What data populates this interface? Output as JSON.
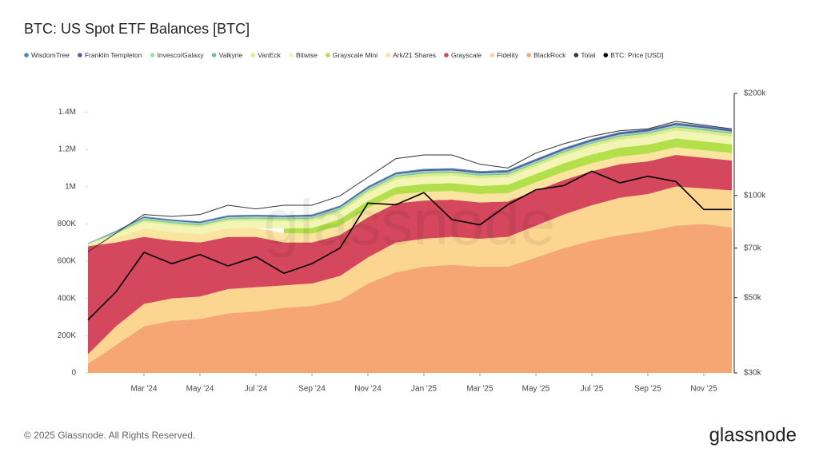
{
  "chart_data": {
    "type": "area",
    "stacked": true,
    "title": "BTC: US Spot ETF Balances [BTC]",
    "watermark": "glassnode",
    "footer": "© 2025 Glassnode. All Rights Reserved.",
    "logo": "glassnode",
    "x": [
      "2024-01",
      "2024-02",
      "2024-03",
      "2024-04",
      "2024-05",
      "2024-06",
      "2024-07",
      "2024-08",
      "2024-09",
      "2024-10",
      "2024-11",
      "2024-12",
      "2025-01",
      "2025-02",
      "2025-03",
      "2025-04",
      "2025-05",
      "2025-06",
      "2025-07",
      "2025-08",
      "2025-09",
      "2025-10",
      "2025-11",
      "2025-12"
    ],
    "xlim": [
      "2024-01",
      "2025-12"
    ],
    "xticks": [
      {
        "value": "2024-03",
        "label": "Mar '24"
      },
      {
        "value": "2024-05",
        "label": "May '24"
      },
      {
        "value": "2024-07",
        "label": "Jul '24"
      },
      {
        "value": "2024-09",
        "label": "Sep '24"
      },
      {
        "value": "2024-11",
        "label": "Nov '24"
      },
      {
        "value": "2025-01",
        "label": "Jan '25"
      },
      {
        "value": "2025-03",
        "label": "Mar '25"
      },
      {
        "value": "2025-05",
        "label": "May '25"
      },
      {
        "value": "2025-07",
        "label": "Jul '25"
      },
      {
        "value": "2025-09",
        "label": "Sep '25"
      },
      {
        "value": "2025-11",
        "label": "Nov '25"
      }
    ],
    "ylim": [
      0,
      1500000
    ],
    "yticks": [
      0,
      {
        "value": 200000,
        "label": "200K"
      },
      {
        "value": 400000,
        "label": "400K"
      },
      {
        "value": 600000,
        "label": "600K"
      },
      {
        "value": 800000,
        "label": "800K"
      },
      {
        "value": 1000000,
        "label": "1M"
      },
      {
        "value": 1200000,
        "label": "1.2M"
      },
      {
        "value": 1400000,
        "label": "1.4M"
      }
    ],
    "y2scale": "log",
    "y2lim": [
      30000,
      200000
    ],
    "y2ticks": [
      {
        "value": 30000,
        "label": "$30k"
      },
      {
        "value": 50000,
        "label": "$50k"
      },
      {
        "value": 70000,
        "label": "$70k"
      },
      {
        "value": 100000,
        "label": "$100k"
      },
      {
        "value": 200000,
        "label": "$200k"
      }
    ],
    "series": [
      {
        "name": "WisdomTree",
        "color": "#3a8cc4",
        "values": [
          1000,
          2000,
          3000,
          3000,
          3000,
          3000,
          3000,
          3000,
          3000,
          3000,
          3000,
          3000,
          3000,
          3000,
          3000,
          3000,
          3000,
          3000,
          3000,
          3000,
          3000,
          3000,
          3000,
          3000
        ]
      },
      {
        "name": "Franklin Templeton",
        "color": "#5a5a9e",
        "values": [
          1000,
          3000,
          5000,
          5000,
          6000,
          6000,
          6000,
          6000,
          7000,
          7000,
          8000,
          8000,
          9000,
          9000,
          9000,
          9000,
          10000,
          10000,
          10000,
          10000,
          10000,
          10000,
          10000,
          10000
        ]
      },
      {
        "name": "Invesco/Galaxy",
        "color": "#a3d9b1",
        "values": [
          3000,
          5000,
          7000,
          7000,
          7000,
          7000,
          7000,
          7000,
          7000,
          7000,
          7000,
          7000,
          7000,
          6000,
          6000,
          6000,
          6000,
          6000,
          6000,
          6000,
          6000,
          6000,
          6000,
          6000
        ]
      },
      {
        "name": "Valkyrie",
        "color": "#6cc5a0",
        "values": [
          1000,
          3000,
          5000,
          5000,
          5000,
          5000,
          5000,
          5000,
          5000,
          5000,
          6000,
          6000,
          6000,
          6000,
          6000,
          6000,
          6000,
          6000,
          6000,
          6000,
          6000,
          6000,
          6000,
          6000
        ]
      },
      {
        "name": "VanEck",
        "color": "#d9ec8c",
        "values": [
          1000,
          5000,
          10000,
          10000,
          10000,
          10000,
          12000,
          12000,
          12000,
          13000,
          15000,
          15000,
          16000,
          16000,
          15000,
          15000,
          16000,
          16000,
          16000,
          17000,
          17000,
          17000,
          17000,
          16000
        ]
      },
      {
        "name": "Bitwise",
        "color": "#f2f5b3",
        "values": [
          5000,
          20000,
          35000,
          37000,
          37000,
          38000,
          38000,
          38000,
          38000,
          38000,
          40000,
          40000,
          40000,
          40000,
          40000,
          40000,
          40000,
          42000,
          42000,
          42000,
          42000,
          42000,
          42000,
          40000
        ]
      },
      {
        "name": "Grayscale Mini",
        "color": "#b3e04a",
        "values": [
          null,
          null,
          null,
          null,
          null,
          null,
          null,
          25000,
          30000,
          35000,
          38000,
          40000,
          42000,
          43000,
          44000,
          45000,
          45000,
          46000,
          47000,
          47000,
          48000,
          48000,
          48000,
          47000
        ]
      },
      {
        "name": "Ark/21 Shares",
        "color": "#fbe3a0",
        "values": [
          5000,
          25000,
          45000,
          47000,
          45000,
          47000,
          48000,
          50000,
          48000,
          50000,
          50000,
          48000,
          47000,
          46000,
          45000,
          45000,
          45000,
          44000,
          43000,
          42000,
          42000,
          41000,
          40000,
          40000
        ]
      },
      {
        "name": "Grayscale",
        "color": "#d4475c",
        "values": [
          580000,
          450000,
          360000,
          310000,
          290000,
          280000,
          270000,
          230000,
          220000,
          220000,
          215000,
          210000,
          205000,
          200000,
          195000,
          190000,
          188000,
          185000,
          183000,
          180000,
          175000,
          170000,
          165000,
          160000
        ]
      },
      {
        "name": "Fidelity",
        "color": "#fcd591",
        "values": [
          50000,
          100000,
          120000,
          120000,
          120000,
          130000,
          130000,
          120000,
          120000,
          130000,
          140000,
          160000,
          150000,
          150000,
          150000,
          160000,
          170000,
          180000,
          190000,
          200000,
          200000,
          210000,
          190000,
          200000
        ]
      },
      {
        "name": "BlackRock",
        "color": "#f5a672",
        "values": [
          50000,
          150000,
          250000,
          280000,
          290000,
          320000,
          330000,
          350000,
          360000,
          390000,
          480000,
          540000,
          570000,
          580000,
          570000,
          570000,
          620000,
          670000,
          710000,
          740000,
          760000,
          790000,
          800000,
          780000
        ]
      },
      {
        "name": "Total",
        "color": "#333333",
        "type": "line",
        "values": [
          650000,
          750000,
          850000,
          840000,
          850000,
          900000,
          880000,
          900000,
          900000,
          950000,
          1050000,
          1150000,
          1170000,
          1170000,
          1120000,
          1100000,
          1180000,
          1230000,
          1270000,
          1300000,
          1310000,
          1350000,
          1330000,
          1310000
        ]
      },
      {
        "name": "BTC: Price [USD]",
        "color": "#000000",
        "type": "line",
        "axis": "y2",
        "values": [
          43000,
          52000,
          68000,
          63000,
          67000,
          62000,
          66000,
          59000,
          63000,
          70000,
          95000,
          94000,
          102000,
          85000,
          82000,
          94000,
          104000,
          107000,
          118000,
          109000,
          114000,
          110000,
          91000,
          91000
        ]
      }
    ]
  }
}
